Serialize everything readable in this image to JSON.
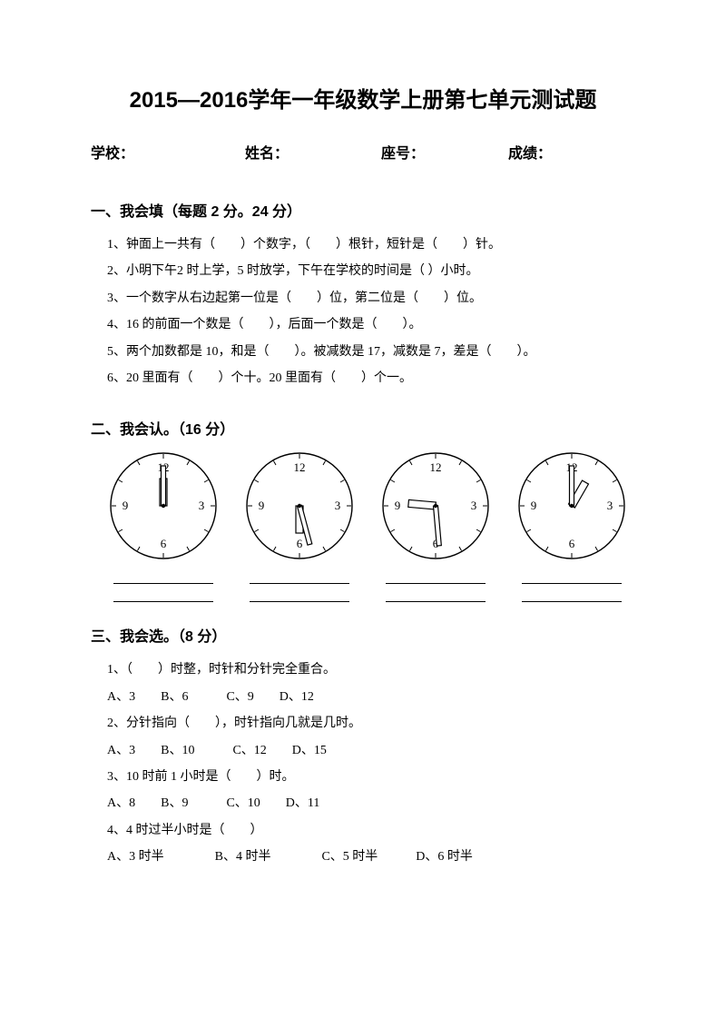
{
  "title": "2015—2016学年一年级数学上册第七单元测试题",
  "header": {
    "school": "学校：",
    "name": "姓名：",
    "seat": "座号：",
    "score": "成绩："
  },
  "sections": {
    "s1": {
      "title": "一、我会填（每题 2 分。24 分）",
      "q1": "1、钟面上一共有（　　）个数字，（　　）根针，短针是（　　）针。",
      "q2": "2、小明下午2 时上学，5 时放学，下午在学校的时间是（  ）小时。",
      "q3": "3、一个数字从右边起第一位是（　　）位，第二位是（　　）位。",
      "q4": "4、16 的前面一个数是（　　），后面一个数是（　　）。",
      "q5": "5、两个加数都是 10，和是（　　）。被减数是 17，减数是 7，差是（　　）。",
      "q6": "6、20 里面有（　　）个十。20 里面有（　　）个一。"
    },
    "s2": {
      "title": "二、我会认。（16 分）",
      "clocks": [
        {
          "hour_deg": 0,
          "min_deg": 0
        },
        {
          "hour_deg": 180,
          "min_deg": 165
        },
        {
          "hour_deg": 275,
          "min_deg": 175
        },
        {
          "hour_deg": 30,
          "min_deg": 0
        }
      ],
      "clock_style": {
        "radius": 58,
        "stroke": "#000000",
        "stroke_width": 1.4,
        "num_fontsize": 13,
        "numbers": {
          "12": "12",
          "3": "3",
          "6": "6",
          "9": "9"
        },
        "hour_hand_len": 30,
        "hour_hand_width": 8,
        "min_hand_len": 44,
        "min_hand_width": 5,
        "tick_len": 5
      }
    },
    "s3": {
      "title": "三、我会选。（8 分）",
      "q1": "1、（　　）时整，时针和分针完全重合。",
      "q1opts": "A、3　　B、6　　　C、9　　D、12",
      "q2": "2、分针指向（　　），时针指向几就是几时。",
      "q2opts": "A、3　　B、10　　　C、12　　D、15",
      "q3": "3、10 时前 1 小时是（　　）时。",
      "q3opts": "A、8　　B、9　　　C、10　　D、11",
      "q4": "4、4 时过半小时是（　　）",
      "q4opts": "A、3 时半　　　　B、4 时半　　　　C、5 时半　　　D、6 时半"
    }
  }
}
